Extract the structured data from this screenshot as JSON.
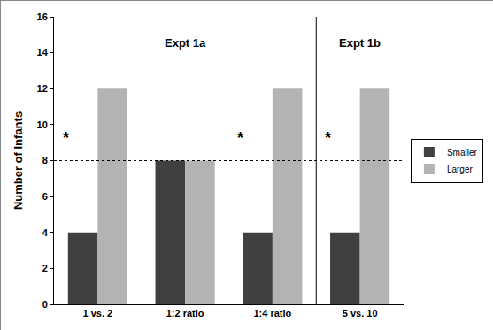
{
  "chart_data": {
    "type": "bar",
    "categories": [
      "1 vs. 2",
      "1:2 ratio",
      "1:4 ratio",
      "5 vs. 10"
    ],
    "series": [
      {
        "name": "Smaller",
        "color": "#404040",
        "values": [
          4,
          8,
          4,
          4
        ]
      },
      {
        "name": "Larger",
        "color": "#b3b3b3",
        "values": [
          12,
          8,
          12,
          12
        ]
      }
    ],
    "y_label": "Number of Infants",
    "ylim": [
      0,
      16
    ],
    "yticks": [
      0,
      2,
      4,
      6,
      8,
      10,
      12,
      14,
      16
    ],
    "grid": false,
    "legend": "right",
    "chance_line": 8,
    "groups": [
      {
        "label": "Expt 1a",
        "categories": [
          "1 vs. 2",
          "1:2 ratio",
          "1:4 ratio"
        ]
      },
      {
        "label": "Expt 1b",
        "categories": [
          "5 vs. 10"
        ]
      }
    ],
    "annotations": [
      {
        "text": "*",
        "category": "1 vs. 2"
      },
      {
        "text": "*",
        "category": "1:4 ratio"
      },
      {
        "text": "*",
        "category": "5 vs. 10"
      }
    ]
  }
}
